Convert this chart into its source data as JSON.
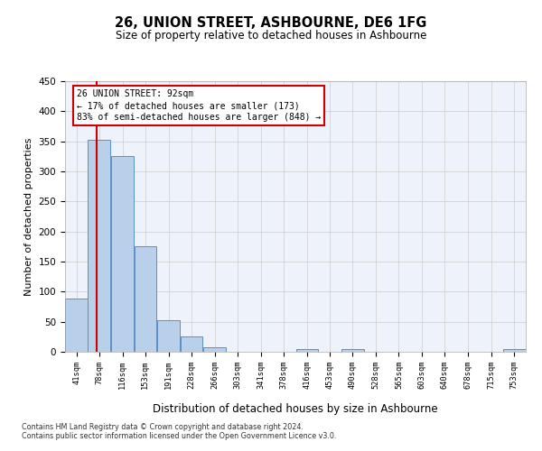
{
  "title": "26, UNION STREET, ASHBOURNE, DE6 1FG",
  "subtitle": "Size of property relative to detached houses in Ashbourne",
  "xlabel": "Distribution of detached houses by size in Ashbourne",
  "ylabel": "Number of detached properties",
  "bar_color": "#b8d0ea",
  "bar_edge_color": "#5b8fc9",
  "grid_color": "#cccccc",
  "background_color": "#eef2fa",
  "property_line_x": 92,
  "annotation_title": "26 UNION STREET: 92sqm",
  "annotation_line1": "← 17% of detached houses are smaller (173)",
  "annotation_line2": "83% of semi-detached houses are larger (848) →",
  "annotation_box_color": "#cc0000",
  "bins": [
    41,
    78,
    116,
    153,
    191,
    228,
    266,
    303,
    341,
    378,
    416,
    453,
    490,
    528,
    565,
    603,
    640,
    678,
    715,
    753,
    790
  ],
  "counts": [
    89,
    353,
    325,
    175,
    53,
    26,
    8,
    0,
    0,
    0,
    4,
    0,
    5,
    0,
    0,
    0,
    0,
    0,
    0,
    5
  ],
  "ylim": [
    0,
    450
  ],
  "yticks": [
    0,
    50,
    100,
    150,
    200,
    250,
    300,
    350,
    400,
    450
  ],
  "footer_line1": "Contains HM Land Registry data © Crown copyright and database right 2024.",
  "footer_line2": "Contains public sector information licensed under the Open Government Licence v3.0."
}
